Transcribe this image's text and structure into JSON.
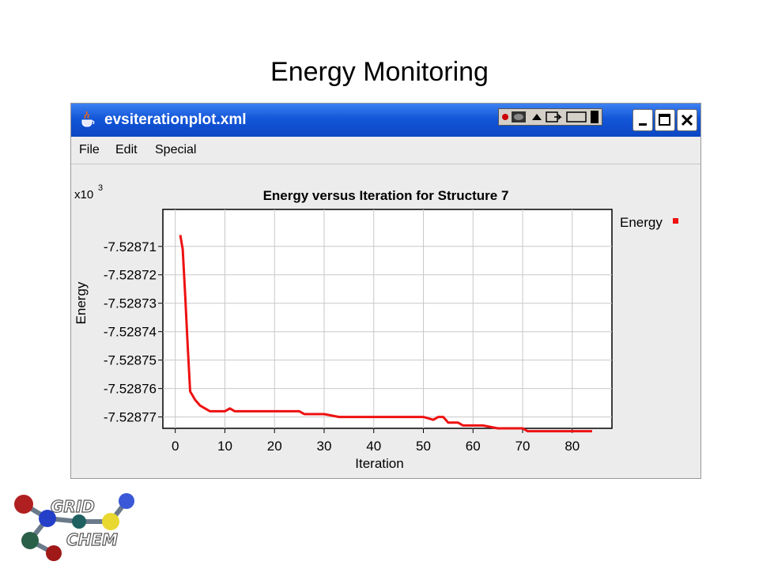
{
  "slide": {
    "title": "Energy Monitoring"
  },
  "window": {
    "title": "evsiterationplot.xml",
    "menu": [
      "File",
      "Edit",
      "Special"
    ],
    "accent": "#0a46c4"
  },
  "chart_data": {
    "type": "line",
    "title": "Energy versus Iteration for Structure 7",
    "xlabel": "Iteration",
    "ylabel": "Energy",
    "y_multiplier_label": "x10",
    "y_multiplier_exponent": "3",
    "xlim": [
      -2.5,
      88
    ],
    "ylim": [
      -7.528774,
      -7.528697
    ],
    "grid": true,
    "legend": "right",
    "x_ticks": [
      0,
      10,
      20,
      30,
      40,
      50,
      60,
      70,
      80
    ],
    "y_ticks": [
      -7.52871,
      -7.52872,
      -7.52873,
      -7.52874,
      -7.52875,
      -7.52876,
      -7.52877
    ],
    "y_tick_labels": [
      "-7.52871",
      "-7.52872",
      "-7.52873",
      "-7.52874",
      "-7.52875",
      "-7.52876",
      "-7.52877"
    ],
    "series": [
      {
        "name": "Energy",
        "color": "#ee1111",
        "x": [
          1,
          1.5,
          2,
          2.5,
          3,
          4,
          5,
          6,
          7,
          8,
          10,
          11,
          12,
          15,
          20,
          25,
          26,
          27,
          30,
          33,
          35,
          40,
          45,
          50,
          52,
          53,
          54,
          55,
          56,
          57,
          58,
          60,
          62,
          65,
          68,
          70,
          71,
          75,
          80,
          84
        ],
        "y": [
          -7.528706,
          -7.528711,
          -7.528727,
          -7.528745,
          -7.528761,
          -7.528764,
          -7.528766,
          -7.528767,
          -7.528768,
          -7.528768,
          -7.528768,
          -7.528767,
          -7.528768,
          -7.528768,
          -7.528768,
          -7.528768,
          -7.528769,
          -7.528769,
          -7.528769,
          -7.52877,
          -7.52877,
          -7.52877,
          -7.52877,
          -7.52877,
          -7.528771,
          -7.52877,
          -7.52877,
          -7.528772,
          -7.528772,
          -7.528772,
          -7.528773,
          -7.528773,
          -7.528773,
          -7.528774,
          -7.528774,
          -7.528774,
          -7.528775,
          -7.528775,
          -7.528775,
          -7.528775
        ]
      }
    ]
  },
  "logo": {
    "line1": "GRID",
    "line2": "CHEM"
  }
}
